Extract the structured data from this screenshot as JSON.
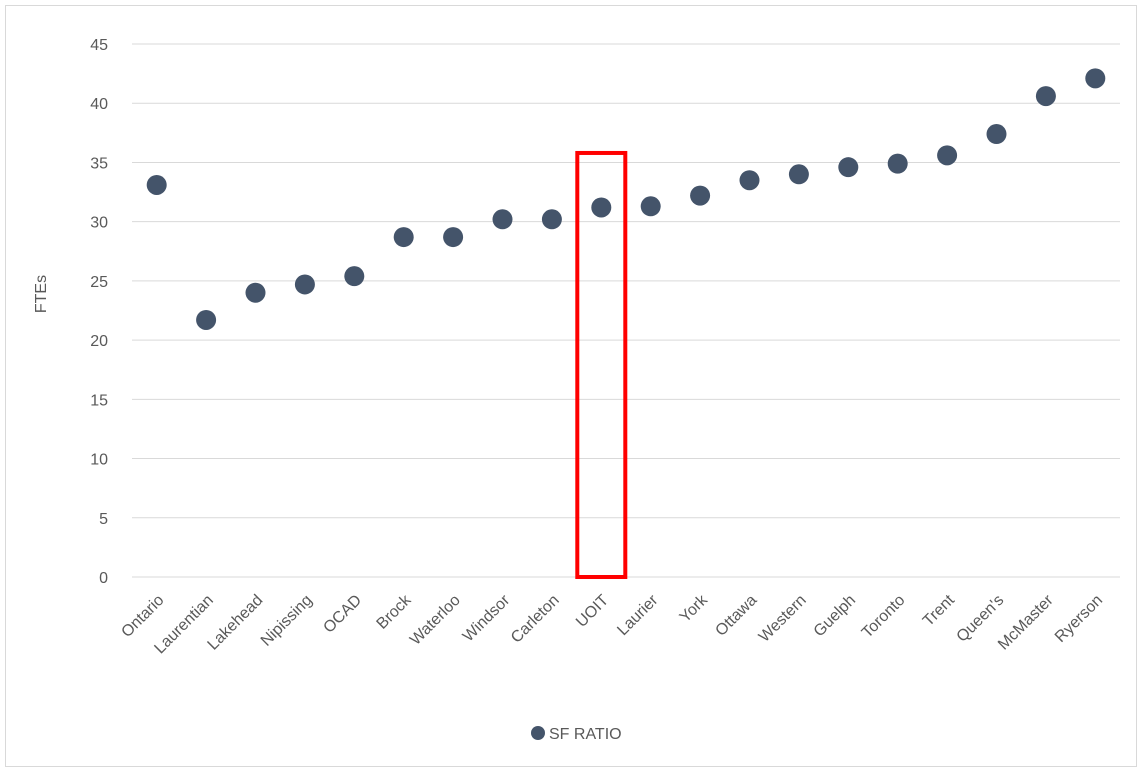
{
  "chart_data": {
    "type": "scatter",
    "title": "",
    "xlabel": "",
    "ylabel": "FTEs",
    "ylim": [
      0,
      45
    ],
    "yticks": [
      0,
      5,
      10,
      15,
      20,
      25,
      30,
      35,
      40,
      45
    ],
    "grid": true,
    "legend_position": "bottom",
    "categories": [
      "Ontario",
      "Laurentian",
      "Lakehead",
      "Nipissing",
      "OCAD",
      "Brock",
      "Waterloo",
      "Windsor",
      "Carleton",
      "UOIT",
      "Laurier",
      "York",
      "Ottawa",
      "Western",
      "Guelph",
      "Toronto",
      "Trent",
      "Queen's",
      "McMaster",
      "Ryerson"
    ],
    "series": [
      {
        "name": "SF RATIO",
        "color": "#44546a",
        "values": [
          33.1,
          21.7,
          24.0,
          24.7,
          25.4,
          28.7,
          28.7,
          30.2,
          30.2,
          31.2,
          31.3,
          32.2,
          33.5,
          34.0,
          34.6,
          34.9,
          35.6,
          37.4,
          40.6,
          42.1
        ]
      }
    ],
    "highlight": {
      "category": "UOIT",
      "color": "#ff0000"
    }
  }
}
